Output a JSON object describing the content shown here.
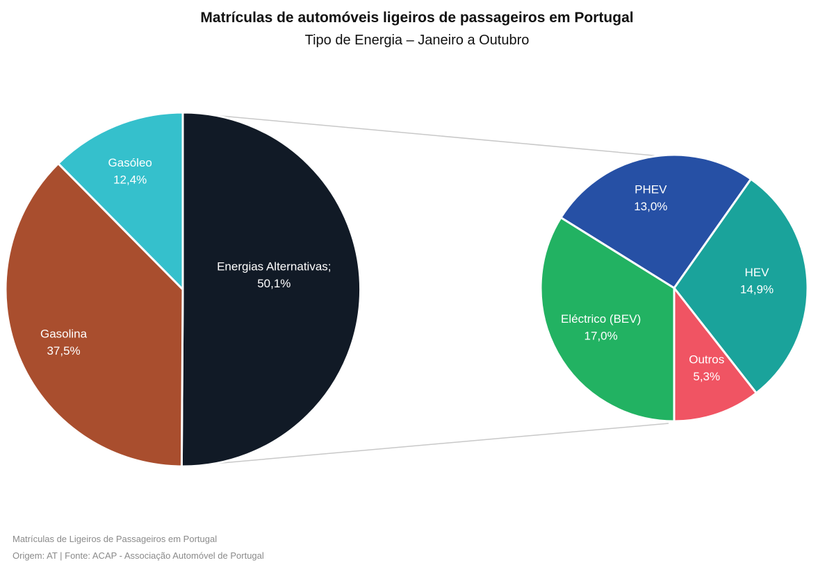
{
  "header": {
    "title": "Matrículas de automóveis ligeiros de passageiros em Portugal",
    "subtitle": "Tipo de Energia – Janeiro a Outubro"
  },
  "footer": {
    "line1": "Matrículas de Ligeiros de Passageiros em Portugal",
    "line2": "Origem: AT | Fonte: ACAP - Associação Automóvel de Portugal"
  },
  "chart_data": [
    {
      "type": "pie",
      "title": "Matrículas de automóveis ligeiros de passageiros em Portugal",
      "subtitle": "Tipo de Energia – Janeiro a Outubro",
      "slices": [
        {
          "name": "Energias Alternativas;",
          "value": 50.1,
          "label": "50,1%",
          "color": "#111a26"
        },
        {
          "name": "Gasolina",
          "value": 37.5,
          "label": "37,5%",
          "color": "#a94e2e"
        },
        {
          "name": "Gasóleo",
          "value": 12.4,
          "label": "12,4%",
          "color": "#35c0cc"
        }
      ]
    },
    {
      "type": "pie",
      "slices": [
        {
          "name": "PHEV",
          "value": 13.0,
          "label": "13,0%",
          "color": "#2650a5"
        },
        {
          "name": "HEV",
          "value": 14.9,
          "label": "14,9%",
          "color": "#1aa39b"
        },
        {
          "name": "Outros",
          "value": 5.3,
          "label": "5,3%",
          "color": "#f05463"
        },
        {
          "name": "Eléctrico (BEV)",
          "value": 17.0,
          "label": "17,0%",
          "color": "#22b262"
        }
      ]
    }
  ]
}
